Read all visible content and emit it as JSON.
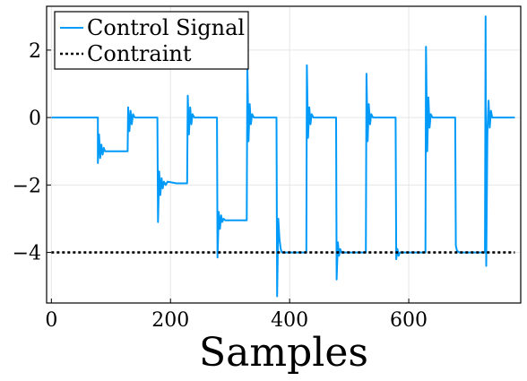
{
  "chart_data": {
    "type": "line",
    "xlabel": "Samples",
    "ylabel": "",
    "xlim": [
      -8,
      788
    ],
    "ylim": [
      -5.5,
      3.3
    ],
    "x_ticks": [
      0,
      200,
      400,
      600
    ],
    "y_ticks": [
      2,
      0,
      -2,
      -4
    ],
    "x_tick_labels": [
      "0",
      "200",
      "400",
      "600"
    ],
    "y_tick_labels": [
      "2",
      "0",
      "−2",
      "−4"
    ],
    "grid": true,
    "legend_position": "top-left",
    "series": [
      {
        "name": "Control Signal",
        "style": "solid",
        "color": "#009af9",
        "points": [
          [
            0,
            0
          ],
          [
            78,
            0
          ],
          [
            78,
            -1.35
          ],
          [
            80,
            -0.5
          ],
          [
            82,
            -1.2
          ],
          [
            84,
            -0.8
          ],
          [
            86,
            -1.1
          ],
          [
            88,
            -0.9
          ],
          [
            90,
            -1.0
          ],
          [
            100,
            -1.0
          ],
          [
            115,
            -1.0
          ],
          [
            128,
            -1.0
          ],
          [
            129,
            0.3
          ],
          [
            131,
            -0.4
          ],
          [
            133,
            0.2
          ],
          [
            135,
            -0.2
          ],
          [
            137,
            0.1
          ],
          [
            140,
            0.0
          ],
          [
            150,
            0.0
          ],
          [
            165,
            0.0
          ],
          [
            178,
            0.0
          ],
          [
            179,
            -3.1
          ],
          [
            181,
            -1.6
          ],
          [
            183,
            -2.3
          ],
          [
            185,
            -1.8
          ],
          [
            187,
            -2.1
          ],
          [
            189,
            -1.9
          ],
          [
            192,
            -2.0
          ],
          [
            195,
            -1.9
          ],
          [
            210,
            -1.95
          ],
          [
            228,
            -1.95
          ],
          [
            229,
            0.65
          ],
          [
            231,
            -0.5
          ],
          [
            233,
            0.3
          ],
          [
            235,
            -0.2
          ],
          [
            237,
            0.1
          ],
          [
            240,
            0.0
          ],
          [
            255,
            0.0
          ],
          [
            278,
            0.0
          ],
          [
            279,
            -4.15
          ],
          [
            281,
            -2.8
          ],
          [
            283,
            -3.3
          ],
          [
            285,
            -2.9
          ],
          [
            287,
            -3.1
          ],
          [
            289,
            -3.0
          ],
          [
            292,
            -3.05
          ],
          [
            300,
            -3.05
          ],
          [
            328,
            -3.05
          ],
          [
            329,
            1.6
          ],
          [
            331,
            -0.7
          ],
          [
            333,
            0.4
          ],
          [
            335,
            -0.2
          ],
          [
            337,
            0.1
          ],
          [
            340,
            0.0
          ],
          [
            355,
            0.0
          ],
          [
            378,
            0.0
          ],
          [
            379,
            -5.3
          ],
          [
            381,
            -3.0
          ],
          [
            383,
            -3.6
          ],
          [
            385,
            -3.9
          ],
          [
            387,
            -4.0
          ],
          [
            400,
            -4.0
          ],
          [
            428,
            -4.0
          ],
          [
            429,
            1.55
          ],
          [
            431,
            -0.6
          ],
          [
            433,
            0.3
          ],
          [
            435,
            -0.2
          ],
          [
            437,
            0.1
          ],
          [
            440,
            0.0
          ],
          [
            455,
            0.0
          ],
          [
            478,
            0.0
          ],
          [
            479,
            -4.8
          ],
          [
            481,
            -3.7
          ],
          [
            483,
            -4.1
          ],
          [
            485,
            -3.9
          ],
          [
            487,
            -4.0
          ],
          [
            500,
            -4.0
          ],
          [
            528,
            -4.0
          ],
          [
            529,
            1.3
          ],
          [
            531,
            -0.7
          ],
          [
            533,
            0.4
          ],
          [
            535,
            -0.2
          ],
          [
            537,
            0.1
          ],
          [
            540,
            0.0
          ],
          [
            555,
            0.0
          ],
          [
            578,
            0.0
          ],
          [
            579,
            -4.2
          ],
          [
            581,
            -3.9
          ],
          [
            583,
            -4.1
          ],
          [
            585,
            -4.0
          ],
          [
            600,
            -4.0
          ],
          [
            628,
            -4.0
          ],
          [
            629,
            2.1
          ],
          [
            631,
            -1.0
          ],
          [
            633,
            0.6
          ],
          [
            635,
            -0.3
          ],
          [
            637,
            0.1
          ],
          [
            640,
            0.0
          ],
          [
            655,
            0.0
          ],
          [
            678,
            0.0
          ],
          [
            679,
            -3.8
          ],
          [
            681,
            -3.95
          ],
          [
            685,
            -4.0
          ],
          [
            700,
            -4.0
          ],
          [
            728,
            -4.0
          ],
          [
            729,
            3.0
          ],
          [
            730,
            -4.4
          ],
          [
            732,
            -0.5
          ],
          [
            734,
            0.5
          ],
          [
            736,
            -0.3
          ],
          [
            738,
            0.2
          ],
          [
            740,
            0.0
          ],
          [
            755,
            0.0
          ],
          [
            778,
            0.0
          ]
        ]
      },
      {
        "name": "Contraint",
        "style": "dotted",
        "color": "#000000",
        "points": [
          [
            0,
            -4
          ],
          [
            778,
            -4
          ]
        ]
      }
    ]
  }
}
